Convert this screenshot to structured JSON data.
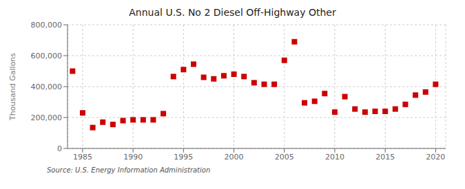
{
  "chart_data": {
    "type": "scatter",
    "title": "Annual U.S. No 2 Diesel Off-Highway Other",
    "ylabel": "Thousand Gallons",
    "annotations": [
      "Source: U.S. Energy Information Administration"
    ],
    "x": [
      1984,
      1985,
      1986,
      1987,
      1988,
      1989,
      1990,
      1991,
      1992,
      1993,
      1994,
      1995,
      1996,
      1997,
      1998,
      1999,
      2000,
      2001,
      2002,
      2003,
      2004,
      2005,
      2006,
      2007,
      2008,
      2009,
      2010,
      2011,
      2012,
      2013,
      2014,
      2015,
      2016,
      2017,
      2018,
      2019,
      2020
    ],
    "values": [
      500000,
      230000,
      135000,
      170000,
      155000,
      180000,
      185000,
      185000,
      185000,
      225000,
      465000,
      510000,
      545000,
      460000,
      450000,
      470000,
      480000,
      465000,
      425000,
      415000,
      415000,
      570000,
      690000,
      295000,
      305000,
      355000,
      235000,
      335000,
      255000,
      235000,
      240000,
      240000,
      255000,
      285000,
      345000,
      365000,
      415000
    ],
    "color": "#cc0000",
    "marker": "square",
    "grid": true,
    "xlim": [
      1983.5,
      2021
    ],
    "xticks": [
      1985,
      1990,
      1995,
      2000,
      2005,
      2010,
      2015,
      2020
    ],
    "ylim": [
      0,
      800000
    ],
    "yticks": [
      0,
      {
        "value": 200000,
        "label": "200,000"
      },
      {
        "value": 400000,
        "label": "400,000"
      },
      {
        "value": 600000,
        "label": "600,000"
      },
      {
        "value": 800000,
        "label": "800,000"
      }
    ]
  }
}
